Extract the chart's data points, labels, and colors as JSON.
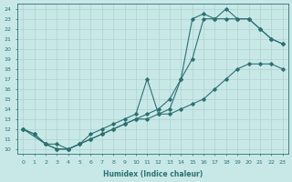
{
  "xlabel": "Humidex (Indice chaleur)",
  "bg_color": "#c8e8e8",
  "grid_color": "#b0d0d0",
  "line_color": "#2d7070",
  "xlim": [
    -0.5,
    23.5
  ],
  "ylim": [
    9.5,
    24.5
  ],
  "yticks": [
    10,
    11,
    12,
    13,
    14,
    15,
    16,
    17,
    18,
    19,
    20,
    21,
    22,
    23,
    24
  ],
  "xticks": [
    0,
    1,
    2,
    3,
    4,
    5,
    6,
    7,
    8,
    9,
    10,
    11,
    12,
    13,
    14,
    15,
    16,
    17,
    18,
    19,
    20,
    21,
    22,
    23
  ],
  "line1_x": [
    0,
    1,
    2,
    3,
    4,
    5,
    6,
    7,
    8,
    9,
    10,
    11,
    12,
    13,
    14,
    15,
    16,
    17,
    18,
    19,
    20,
    21,
    22,
    23
  ],
  "line1_y": [
    12,
    11.5,
    10.5,
    10,
    10,
    10.5,
    11,
    11.5,
    12,
    12.5,
    13,
    13,
    13.5,
    13.5,
    14,
    14.5,
    15,
    16,
    17,
    18,
    18.5,
    18.5,
    18.5,
    18
  ],
  "line2_x": [
    0,
    1,
    2,
    3,
    4,
    5,
    6,
    7,
    8,
    9,
    10,
    11,
    12,
    13,
    14,
    15,
    16,
    17,
    18,
    19,
    20,
    21,
    22,
    23
  ],
  "line2_y": [
    12,
    11.5,
    10.5,
    10.5,
    10,
    10.5,
    11,
    11.5,
    12,
    12.5,
    13,
    13.5,
    14,
    15,
    17,
    19,
    23,
    23,
    23,
    23,
    23,
    22,
    21,
    20.5
  ],
  "line3_x": [
    0,
    2,
    3,
    4,
    5,
    6,
    7,
    8,
    9,
    10,
    11,
    12,
    13,
    14,
    15,
    16,
    17,
    18,
    19,
    20,
    21,
    22,
    23
  ],
  "line3_y": [
    12,
    10.5,
    10,
    10,
    10.5,
    11.5,
    12,
    12.5,
    13,
    13.5,
    17,
    13.5,
    14,
    17,
    23,
    23.5,
    23,
    24,
    23,
    23,
    22,
    21,
    20.5
  ]
}
